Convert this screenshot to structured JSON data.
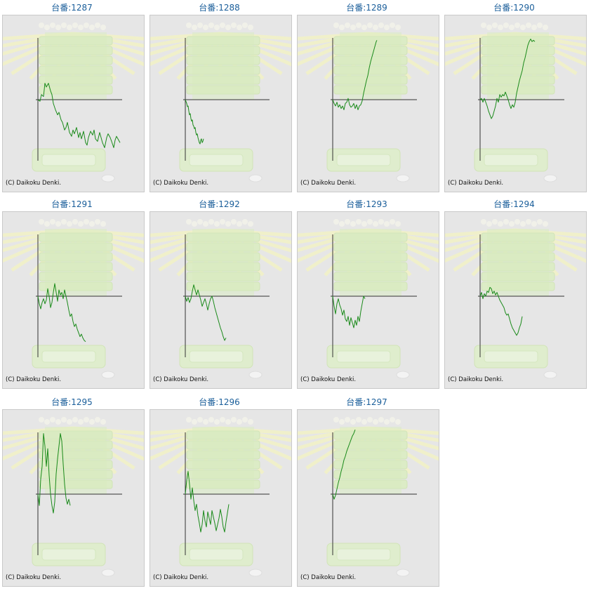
{
  "title_prefix": "台番:",
  "copyright": "(C) Daikoku Denki.",
  "colors": {
    "title": "#1a5e9a",
    "line": "#1a8a1a",
    "axis": "#333333",
    "panel_bg": "#e6e6e6",
    "watermark": "#dcedc3"
  },
  "chart_data": [
    {
      "type": "line",
      "machine": "1287",
      "x": [
        0,
        3,
        5,
        8,
        10,
        12,
        15,
        18,
        20,
        22,
        25,
        28,
        30,
        33,
        35,
        38,
        40,
        42,
        45,
        48,
        50,
        52,
        55,
        58,
        60,
        62,
        65,
        68,
        70,
        72,
        75,
        78,
        80,
        82,
        85,
        88,
        90,
        92,
        95,
        98,
        100,
        103,
        105,
        108,
        110,
        112,
        115,
        117
      ],
      "y": [
        0,
        -0.12,
        0.4,
        0.25,
        1.3,
        1.0,
        1.3,
        0.7,
        0.4,
        -0.3,
        -0.8,
        -1.2,
        -1.0,
        -1.6,
        -1.8,
        -2.4,
        -2.2,
        -1.8,
        -2.6,
        -2.9,
        -2.4,
        -2.7,
        -2.2,
        -3.0,
        -2.6,
        -3.1,
        -2.5,
        -3.4,
        -3.6,
        -3.0,
        -2.5,
        -2.8,
        -2.4,
        -3.1,
        -3.3,
        -2.6,
        -3.0,
        -3.4,
        -3.8,
        -3.0,
        -2.7,
        -3.0,
        -3.3,
        -3.8,
        -3.2,
        -2.9,
        -3.2,
        -3.4
      ]
    },
    {
      "type": "line",
      "machine": "1288",
      "x": [
        0,
        1,
        2,
        3,
        4,
        5,
        6,
        7,
        8,
        9,
        10,
        11,
        12,
        13,
        14,
        15,
        16,
        17,
        18,
        19,
        20,
        21,
        22,
        23,
        24,
        25,
        26
      ],
      "y": [
        0,
        -0.15,
        -0.3,
        -0.55,
        -0.5,
        -0.9,
        -1.2,
        -1.1,
        -1.5,
        -1.7,
        -1.6,
        -2.0,
        -2.1,
        -2.3,
        -2.2,
        -2.6,
        -2.8,
        -2.7,
        -3.0,
        -3.2,
        -3.4,
        -3.5,
        -3.2,
        -3.1,
        -3.4,
        -3.3,
        -3.1
      ]
    },
    {
      "type": "line",
      "machine": "1289",
      "x": [
        0,
        2,
        4,
        6,
        8,
        10,
        12,
        14,
        16,
        18,
        20,
        22,
        24,
        26,
        28,
        30,
        32,
        34,
        36,
        38,
        40,
        42,
        44,
        46,
        48,
        50,
        52,
        54,
        56,
        58,
        60,
        62,
        63
      ],
      "y": [
        0,
        -0.3,
        -0.5,
        -0.2,
        -0.6,
        -0.4,
        -0.7,
        -0.5,
        -0.8,
        -0.3,
        -0.2,
        0.1,
        -0.4,
        -0.6,
        -0.5,
        -0.3,
        -0.7,
        -0.4,
        -0.8,
        -0.5,
        -0.4,
        -0.1,
        0.5,
        1.0,
        1.5,
        1.9,
        2.5,
        3.0,
        3.4,
        3.8,
        4.2,
        4.6,
        4.7
      ]
    },
    {
      "type": "line",
      "machine": "1290",
      "x": [
        0,
        2,
        4,
        6,
        8,
        10,
        12,
        14,
        16,
        18,
        20,
        22,
        24,
        26,
        28,
        30,
        32,
        34,
        36,
        38,
        40,
        42,
        44,
        46,
        48,
        50,
        52,
        54,
        56,
        58,
        60,
        62,
        64,
        66,
        68,
        70,
        72,
        74,
        76,
        78
      ],
      "y": [
        0,
        0.1,
        -0.2,
        0.1,
        -0.2,
        -0.5,
        -0.9,
        -1.2,
        -1.5,
        -1.3,
        -0.9,
        -0.5,
        0.1,
        -0.2,
        0.4,
        0.2,
        0.4,
        0.3,
        0.6,
        0.3,
        0.0,
        -0.4,
        -0.7,
        -0.4,
        -0.6,
        -0.2,
        0.5,
        1.0,
        1.5,
        1.9,
        2.3,
        2.9,
        3.3,
        3.8,
        4.3,
        4.6,
        4.8,
        4.6,
        4.7,
        4.6
      ]
    },
    {
      "type": "line",
      "machine": "1291",
      "x": [
        0,
        2,
        4,
        6,
        8,
        10,
        12,
        14,
        16,
        18,
        20,
        22,
        24,
        26,
        28,
        30,
        32,
        34,
        36,
        38,
        40,
        42,
        44,
        46,
        48,
        50,
        52,
        54,
        56,
        58,
        60,
        62,
        64,
        66,
        68
      ],
      "y": [
        0,
        -0.6,
        -1.0,
        -0.5,
        -0.2,
        -0.6,
        -0.3,
        0.6,
        0.0,
        -0.9,
        -0.5,
        0.3,
        1.0,
        0.3,
        -0.4,
        0.5,
        0.1,
        0.3,
        -0.2,
        0.5,
        0.0,
        -0.5,
        -1.1,
        -1.6,
        -1.4,
        -2.0,
        -2.4,
        -2.2,
        -2.6,
        -2.9,
        -3.2,
        -3.0,
        -3.3,
        -3.5,
        -3.6
      ]
    },
    {
      "type": "line",
      "machine": "1292",
      "x": [
        0,
        2,
        4,
        6,
        8,
        10,
        12,
        14,
        16,
        18,
        20,
        22,
        24,
        26,
        28,
        30,
        32,
        34,
        36,
        38,
        40,
        42,
        44,
        46,
        48,
        50,
        52,
        54,
        56,
        58
      ],
      "y": [
        0,
        -0.4,
        -0.1,
        -0.5,
        -0.2,
        0.4,
        0.9,
        0.5,
        0.1,
        0.5,
        0.1,
        -0.3,
        -0.8,
        -0.5,
        -0.2,
        -0.6,
        -1.1,
        -0.6,
        -0.2,
        0.0,
        -0.4,
        -0.9,
        -1.3,
        -1.7,
        -2.1,
        -2.5,
        -2.8,
        -3.2,
        -3.5,
        -3.3
      ]
    },
    {
      "type": "line",
      "machine": "1293",
      "x": [
        0,
        2,
        4,
        6,
        8,
        10,
        12,
        14,
        16,
        18,
        20,
        22,
        24,
        26,
        28,
        30,
        32,
        34,
        36,
        38,
        40,
        42,
        44,
        46
      ],
      "y": [
        0,
        -0.8,
        -1.4,
        -0.6,
        -0.2,
        -0.7,
        -1.0,
        -1.5,
        -1.1,
        -1.8,
        -2.0,
        -1.6,
        -2.3,
        -1.7,
        -2.1,
        -2.5,
        -1.9,
        -2.3,
        -1.6,
        -2.0,
        -1.2,
        -0.6,
        0.0,
        -0.2
      ]
    },
    {
      "type": "line",
      "machine": "1294",
      "x": [
        0,
        2,
        4,
        6,
        8,
        10,
        12,
        14,
        16,
        18,
        20,
        22,
        24,
        26,
        28,
        30,
        32,
        34,
        36,
        38,
        40,
        42,
        44,
        46,
        48,
        50,
        52,
        54,
        56,
        58,
        60
      ],
      "y": [
        0,
        0.3,
        -0.2,
        0.2,
        0.0,
        0.4,
        0.3,
        0.7,
        0.6,
        0.2,
        0.4,
        0.1,
        0.3,
        0.0,
        -0.3,
        -0.5,
        -0.7,
        -0.9,
        -1.3,
        -1.5,
        -1.4,
        -1.8,
        -2.2,
        -2.5,
        -2.7,
        -2.9,
        -3.1,
        -2.9,
        -2.5,
        -2.2,
        -1.6
      ]
    },
    {
      "type": "line",
      "machine": "1295",
      "x": [
        0,
        2,
        4,
        6,
        8,
        10,
        12,
        14,
        16,
        18,
        20,
        22,
        24,
        26,
        28,
        30,
        32,
        34,
        36,
        38,
        40,
        42,
        44,
        46
      ],
      "y": [
        0,
        -0.9,
        1.2,
        2.2,
        4.8,
        3.8,
        2.2,
        3.6,
        1.5,
        0.0,
        -0.9,
        -1.5,
        -0.6,
        1.6,
        2.8,
        3.8,
        4.8,
        4.2,
        2.4,
        0.8,
        -0.3,
        -0.8,
        -0.4,
        -0.9
      ]
    },
    {
      "type": "line",
      "machine": "1296",
      "x": [
        0,
        2,
        4,
        6,
        8,
        10,
        12,
        14,
        16,
        18,
        20,
        22,
        24,
        26,
        28,
        30,
        32,
        34,
        36,
        38,
        40,
        42,
        44,
        46,
        48,
        50,
        52,
        54,
        56,
        58,
        60,
        62
      ],
      "y": [
        0,
        1.1,
        1.8,
        0.8,
        -0.4,
        0.5,
        -0.5,
        -1.3,
        -0.8,
        -1.7,
        -2.3,
        -3.0,
        -2.4,
        -1.3,
        -2.1,
        -2.6,
        -1.4,
        -1.9,
        -2.4,
        -1.3,
        -1.8,
        -2.3,
        -2.9,
        -2.4,
        -1.9,
        -1.2,
        -1.8,
        -2.6,
        -3.0,
        -2.2,
        -1.5,
        -0.8
      ]
    },
    {
      "type": "line",
      "machine": "1297",
      "x": [
        0,
        2,
        4,
        6,
        8,
        10,
        12,
        14,
        16,
        18,
        20,
        22,
        24,
        26,
        28,
        30,
        32
      ],
      "y": [
        0,
        -0.4,
        -0.1,
        0.4,
        0.9,
        1.3,
        1.8,
        2.2,
        2.7,
        3.0,
        3.4,
        3.7,
        4.0,
        4.3,
        4.6,
        4.8,
        5.1
      ]
    }
  ]
}
